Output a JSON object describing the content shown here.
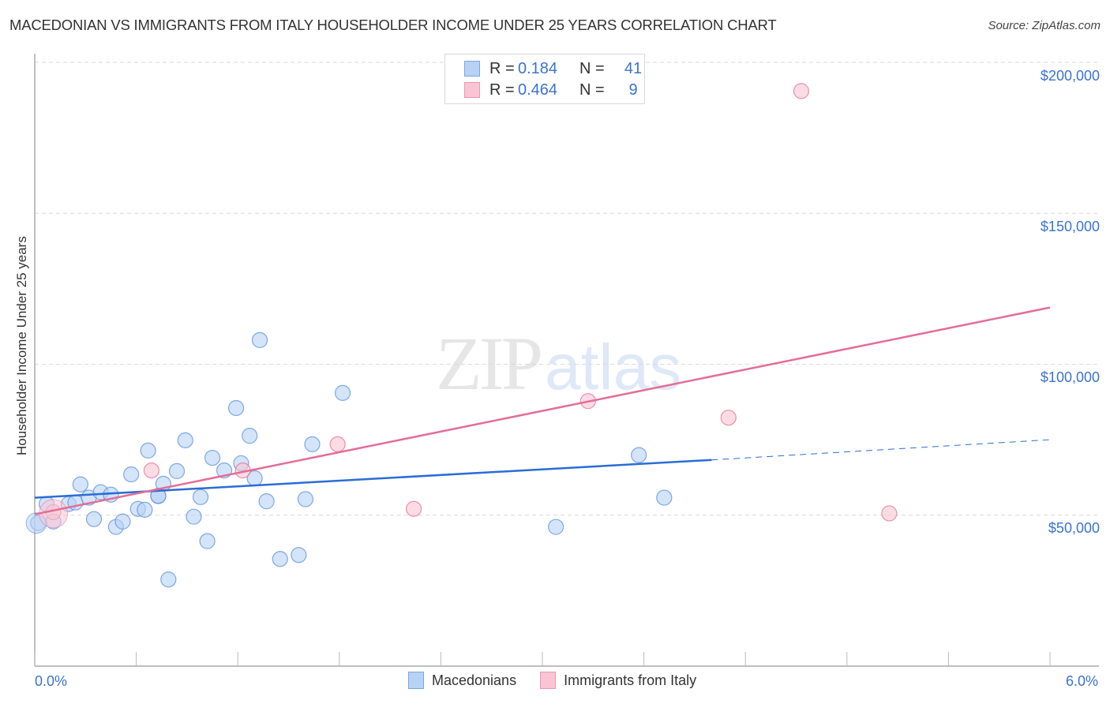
{
  "header": {
    "title": "MACEDONIAN VS IMMIGRANTS FROM ITALY HOUSEHOLDER INCOME UNDER 25 YEARS CORRELATION CHART",
    "source": "Source: ZipAtlas.com"
  },
  "watermark": {
    "zip": "ZIP",
    "atlas": "atlas"
  },
  "legend_top": {
    "rows": [
      {
        "r_label": "R =",
        "r_value": "0.184",
        "n_label": "N =",
        "n_value": "41",
        "color": "#b8d2f5"
      },
      {
        "r_label": "R =",
        "r_value": "0.464",
        "n_label": "N =",
        "n_value": "9",
        "color": "#f9c4d4"
      }
    ]
  },
  "axes": {
    "ylabel": "Householder Income Under 25 years",
    "yticks": [
      "$200,000",
      "$150,000",
      "$100,000",
      "$50,000"
    ],
    "xticks": [
      "0.0%",
      "6.0%"
    ]
  },
  "legend_bottom": {
    "items": [
      {
        "label": "Macedonians",
        "color": "#b8d2f5",
        "border": "#7aa6e0"
      },
      {
        "label": "Immigrants from Italy",
        "color": "#f9c4d4",
        "border": "#e899b2"
      }
    ]
  },
  "chart_data": {
    "type": "scatter",
    "title": "MACEDONIAN VS IMMIGRANTS FROM ITALY HOUSEHOLDER INCOME UNDER 25 YEARS CORRELATION CHART",
    "xlabel": "",
    "ylabel": "Householder Income Under 25 years",
    "xlim": [
      0,
      6.0
    ],
    "ylim": [
      0,
      200000
    ],
    "yticks": [
      50000,
      100000,
      150000,
      200000
    ],
    "grid": true,
    "legend_position": "bottom",
    "series": [
      {
        "name": "Macedonians",
        "color": "#5b8fdb",
        "fill": "#b8d2f5",
        "R": 0.184,
        "N": 41,
        "points": [
          [
            0.02,
            47400
          ],
          [
            0.07,
            53700
          ],
          [
            0.11,
            47900
          ],
          [
            0.2,
            53700
          ],
          [
            0.24,
            54200
          ],
          [
            0.27,
            60200
          ],
          [
            0.32,
            55800
          ],
          [
            0.35,
            48700
          ],
          [
            0.39,
            57600
          ],
          [
            0.45,
            56800
          ],
          [
            0.48,
            46100
          ],
          [
            0.52,
            47900
          ],
          [
            0.57,
            63500
          ],
          [
            0.61,
            52100
          ],
          [
            0.65,
            51800
          ],
          [
            0.67,
            71400
          ],
          [
            0.73,
            56300
          ],
          [
            0.76,
            60400
          ],
          [
            0.79,
            28700
          ],
          [
            0.84,
            64600
          ],
          [
            0.89,
            74800
          ],
          [
            0.94,
            49500
          ],
          [
            0.98,
            56000
          ],
          [
            1.02,
            41400
          ],
          [
            1.05,
            69000
          ],
          [
            1.12,
            64800
          ],
          [
            1.22,
            67200
          ],
          [
            1.27,
            76300
          ],
          [
            1.3,
            62200
          ],
          [
            1.33,
            108000
          ],
          [
            1.37,
            54600
          ],
          [
            1.45,
            35500
          ],
          [
            1.56,
            36800
          ],
          [
            1.6,
            55300
          ],
          [
            1.64,
            73500
          ],
          [
            1.82,
            90500
          ],
          [
            3.08,
            46100
          ],
          [
            3.57,
            69900
          ],
          [
            3.72,
            55800
          ],
          [
            1.19,
            85500
          ],
          [
            0.73,
            56400
          ]
        ],
        "trendline": {
          "x": [
            0,
            4.0
          ],
          "y": [
            55800,
            68300
          ],
          "dashed_extension_to": [
            6.0,
            75000
          ]
        }
      },
      {
        "name": "Immigrants from Italy",
        "color": "#e46e95",
        "fill": "#f9c4d4",
        "R": 0.464,
        "N": 9,
        "points": [
          [
            0.11,
            51000
          ],
          [
            0.69,
            64800
          ],
          [
            1.23,
            64800
          ],
          [
            1.79,
            73500
          ],
          [
            2.24,
            52100
          ],
          [
            3.27,
            87800
          ],
          [
            4.1,
            82300
          ],
          [
            4.53,
            190500
          ],
          [
            5.05,
            50600
          ]
        ],
        "trendline": {
          "x": [
            0,
            6.0
          ],
          "y": [
            50300,
            118800
          ]
        }
      }
    ]
  }
}
